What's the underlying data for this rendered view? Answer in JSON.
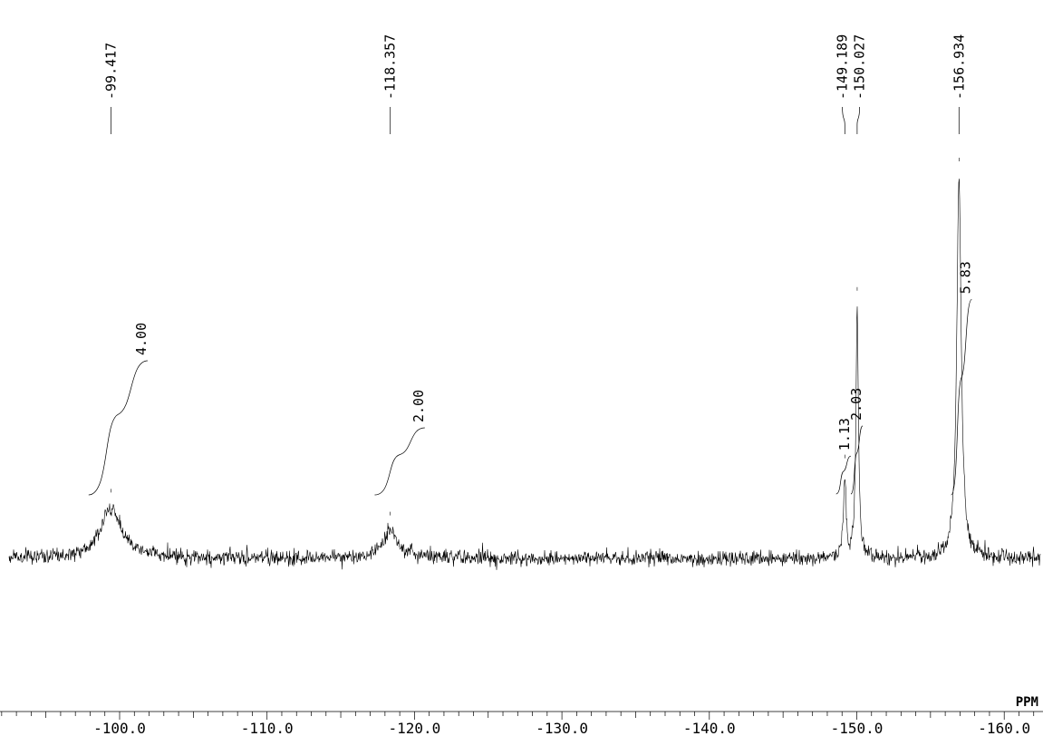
{
  "chart_data": {
    "type": "line",
    "title": "",
    "xlabel": "PPM",
    "ylabel": "",
    "xlim": [
      -92.0,
      -162.0
    ],
    "x_reversed": true,
    "grid": false,
    "x_ticks": [
      {
        "value": -100.0,
        "label": "-100.0"
      },
      {
        "value": -110.0,
        "label": "-110.0"
      },
      {
        "value": -120.0,
        "label": "-120.0"
      },
      {
        "value": -130.0,
        "label": "-130.0"
      },
      {
        "value": -140.0,
        "label": "-140.0"
      },
      {
        "value": -150.0,
        "label": "-150.0"
      },
      {
        "value": -160.0,
        "label": "-160.0"
      }
    ],
    "minor_tick_step": 1,
    "peak_labels": [
      {
        "shift": -99.417,
        "label": "-99.417"
      },
      {
        "shift": -118.357,
        "label": "-118.357"
      },
      {
        "shift": -149.189,
        "label": "-149.189"
      },
      {
        "shift": -150.027,
        "label": "-150.027"
      },
      {
        "shift": -156.934,
        "label": "-156.934"
      }
    ],
    "peaks": [
      {
        "shift": -99.417,
        "height": 0.13,
        "width": 0.9,
        "shape": "broad"
      },
      {
        "shift": -118.357,
        "height": 0.07,
        "width": 0.7,
        "shape": "broad"
      },
      {
        "shift": -149.189,
        "height": 0.22,
        "width": 0.1,
        "shape": "sharp"
      },
      {
        "shift": -150.027,
        "height": 0.66,
        "width": 0.1,
        "shape": "sharp"
      },
      {
        "shift": -156.934,
        "height": 1.0,
        "width": 0.18,
        "shape": "sharp"
      }
    ],
    "integrals": [
      {
        "from": -97.9,
        "to": -101.9,
        "value": 4.0,
        "label": "4.00"
      },
      {
        "from": -117.3,
        "to": -120.7,
        "value": 2.0,
        "label": "2.00"
      },
      {
        "from": -148.6,
        "to": -149.6,
        "value": 1.13,
        "label": "1.13"
      },
      {
        "from": -149.6,
        "to": -150.4,
        "value": 2.03,
        "label": "2.03"
      },
      {
        "from": -156.4,
        "to": -157.8,
        "value": 5.83,
        "label": "5.83"
      }
    ]
  }
}
